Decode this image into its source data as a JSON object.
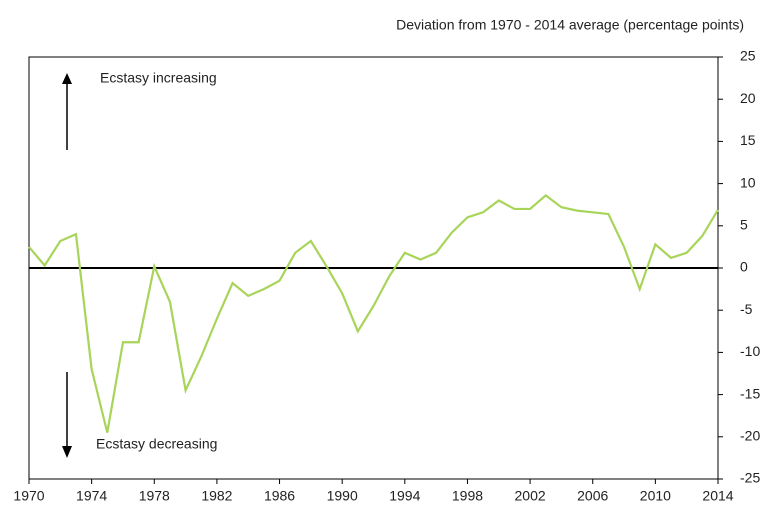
{
  "chart_data": {
    "type": "line",
    "title": "Deviation from 1970 - 2014 average (percentage points)",
    "annotations": [
      "Ecstasy increasing",
      "Ecstasy decreasing"
    ],
    "x": [
      1970,
      1971,
      1972,
      1973,
      1974,
      1975,
      1976,
      1977,
      1978,
      1979,
      1980,
      1981,
      1982,
      1983,
      1984,
      1985,
      1986,
      1987,
      1988,
      1989,
      1990,
      1991,
      1992,
      1993,
      1994,
      1995,
      1996,
      1997,
      1998,
      1999,
      2000,
      2001,
      2002,
      2003,
      2004,
      2005,
      2006,
      2007,
      2008,
      2009,
      2010,
      2011,
      2012,
      2013,
      2014
    ],
    "series": [
      {
        "color": "#a8d45a",
        "values": [
          2.5,
          0.3,
          3.2,
          4.0,
          -12,
          -19.5,
          -8.8,
          -8.8,
          0.2,
          -4,
          -14.5,
          -10.5,
          -6,
          -1.8,
          -3.3,
          -2.5,
          -1.5,
          1.8,
          3.2,
          0.2,
          -3,
          -7.5,
          -4.5,
          -1,
          1.8,
          1,
          1.8,
          4.2,
          6,
          6.6,
          8,
          7,
          7,
          8.6,
          7.2,
          6.8,
          6.6,
          6.4,
          2.5,
          -2.5,
          2.8,
          1.2,
          1.8,
          3.8,
          6.9
        ]
      }
    ],
    "xlim": [
      1970,
      2014
    ],
    "xticks": [
      1970,
      1974,
      1978,
      1982,
      1986,
      1990,
      1994,
      1998,
      2002,
      2006,
      2010,
      2014
    ],
    "ylim": [
      -25,
      25
    ],
    "yticks": [
      -25,
      -20,
      -15,
      -10,
      -5,
      0,
      5,
      10,
      15,
      20,
      25
    ],
    "zero_line": true
  }
}
